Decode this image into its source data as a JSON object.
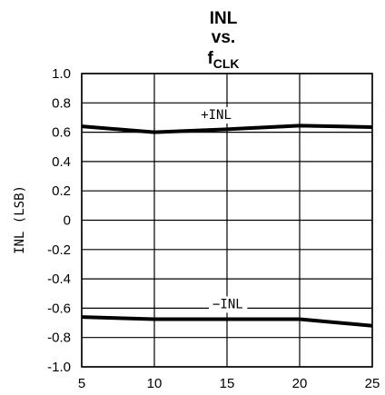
{
  "chart_data": {
    "type": "line",
    "title": {
      "line1": "INL",
      "line2": "vs.",
      "line3_main": "f",
      "line3_sub": "CLK"
    },
    "xlabel": "",
    "ylabel": "INL (LSB)",
    "xlim": [
      5,
      25
    ],
    "ylim": [
      -1.0,
      1.0
    ],
    "x_ticks": [
      5,
      10,
      15,
      20,
      25
    ],
    "x_tick_labels": [
      "5",
      "10",
      "15",
      "20",
      "25"
    ],
    "y_ticks": [
      1.0,
      0.8,
      0.6,
      0.4,
      0.2,
      0,
      -0.2,
      -0.4,
      -0.6,
      -0.8,
      -1.0
    ],
    "y_tick_labels": [
      "1.0",
      "0.8",
      "0.6",
      "0.4",
      "0.2",
      "0",
      "-0.2",
      "-0.4",
      "-0.6",
      "-0.8",
      "-1.0"
    ],
    "grid": true,
    "series": [
      {
        "x": [
          5,
          10,
          15,
          20,
          25
        ],
        "values": [
          0.64,
          0.6,
          0.62,
          0.645,
          0.635
        ]
      },
      {
        "x": [
          5,
          10,
          15,
          20,
          25
        ],
        "values": [
          -0.66,
          -0.675,
          -0.675,
          -0.675,
          -0.72
        ]
      }
    ],
    "annotations": [
      {
        "text": "+INL",
        "x": 13.2,
        "y": 0.69
      },
      {
        "text": "−INL",
        "x": 14.0,
        "y": -0.6
      }
    ]
  }
}
